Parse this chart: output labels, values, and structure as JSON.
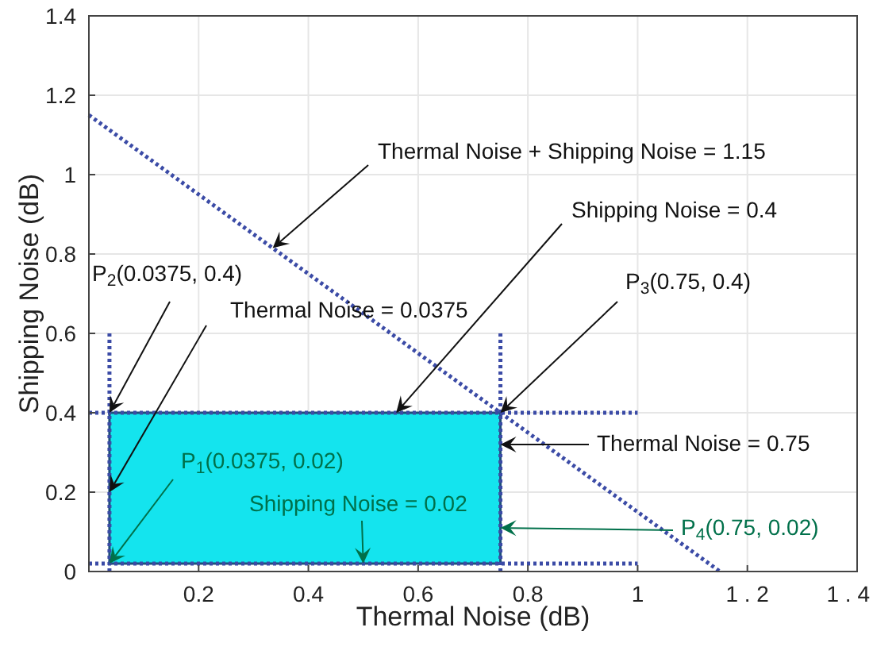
{
  "chart_data": {
    "type": "line",
    "xlabel": "Thermal Noise (dB)",
    "ylabel": "Shipping Noise (dB)",
    "xlim": [
      0,
      1.4
    ],
    "ylim": [
      0,
      1.4
    ],
    "xticks": [
      0.2,
      0.4,
      0.6,
      0.8,
      1,
      {
        "value": 1.2,
        "label": "1 . 2"
      },
      {
        "value": 1.4,
        "label": "1 . 4"
      }
    ],
    "yticks": [
      0,
      0.2,
      0.4,
      0.6,
      0.8,
      1,
      1.2,
      1.4
    ],
    "grid": true,
    "line_style": "dotted",
    "series": [
      {
        "type": "area",
        "color": "#14e4ee",
        "x": [
          0.0375,
          0.0375,
          0.75,
          0.75
        ],
        "values": [
          0.02,
          0.4,
          0.4,
          0.02
        ]
      },
      {
        "color": "#3b4ba6",
        "x": [
          0,
          1.15
        ],
        "values": [
          1.15,
          0
        ]
      },
      {
        "color": "#3b4ba6",
        "x": [
          0.0375,
          0.0375
        ],
        "values": [
          0,
          0.6
        ]
      },
      {
        "color": "#3b4ba6",
        "x": [
          0.75,
          0.75
        ],
        "values": [
          0,
          0.6
        ]
      },
      {
        "color": "#3b4ba6",
        "x": [
          0,
          1
        ],
        "values": [
          0.4,
          0.4
        ]
      },
      {
        "color": "#3b4ba6",
        "x": [
          0,
          1
        ],
        "values": [
          0.02,
          0.02
        ]
      }
    ],
    "annotations": [
      {
        "text": "Thermal Noise + Shipping Noise = 1.15",
        "x": 0.335,
        "y": 0.815
      },
      {
        "text": "Shipping Noise = 0.4",
        "x": 0.56,
        "y": 0.4
      },
      {
        "text": "P$_{2}$(0.0375, 0.4)",
        "x": 0.0375,
        "y": 0.4
      },
      {
        "text": "Thermal Noise = 0.0375",
        "x": 0.0375,
        "y": 0.2
      },
      {
        "text": "P$_{3}$(0.75, 0.4)",
        "x": 0.75,
        "y": 0.4
      },
      {
        "text": "Thermal Noise = 0.75",
        "x": 0.75,
        "y": 0.32
      },
      {
        "text": "P$_{1}$(0.0375, 0.02)",
        "x": 0.0375,
        "y": 0.02
      },
      {
        "text": "Shipping Noise = 0.02",
        "x": 0.5,
        "y": 0.02
      },
      {
        "text": "P$_{4}$(0.75, 0.02)",
        "x": 0.75,
        "y": 0.11
      }
    ]
  }
}
